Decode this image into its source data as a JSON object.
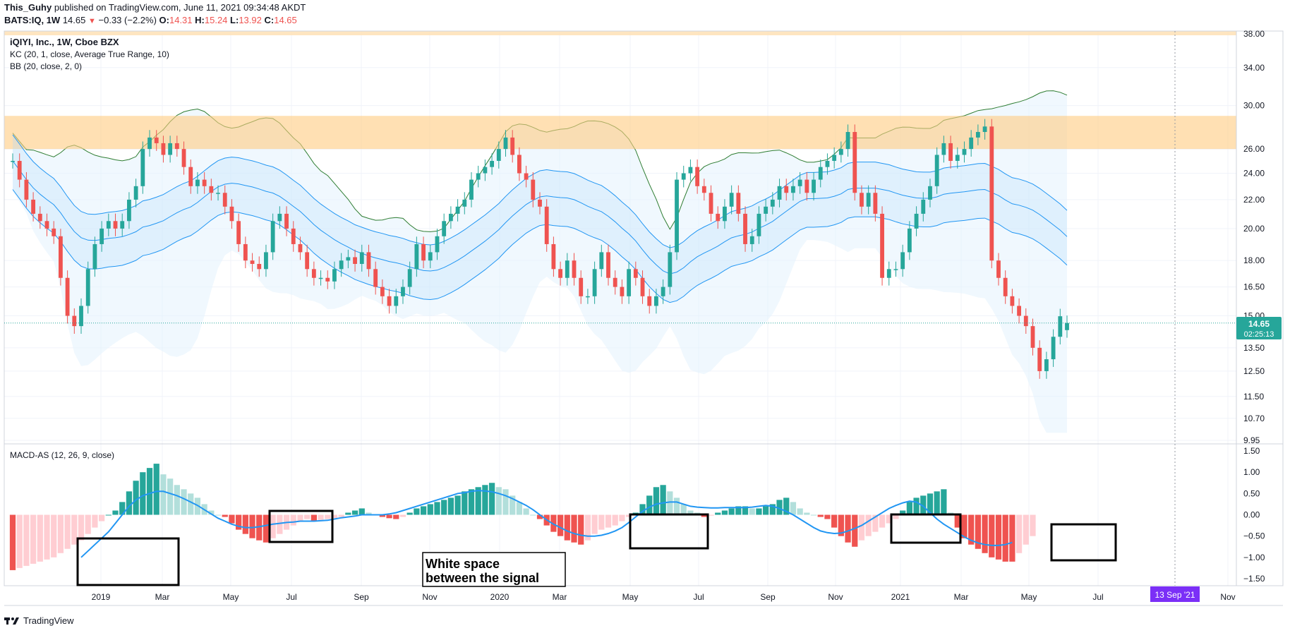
{
  "header": {
    "author": "This_Guhy",
    "published_text": "published on TradingView.com, June 11, 2021 09:34:48 AKDT",
    "symbol": "BATS:IQ, 1W",
    "last": "14.65",
    "change": "−0.33 (−2.2%)",
    "o_label": "O:",
    "o_value": "14.31",
    "h_label": "H:",
    "h_value": "15.24",
    "l_label": "L:",
    "l_value": "13.92",
    "c_label": "C:",
    "c_value": "14.65"
  },
  "legend": {
    "main_title": "iQIYI, Inc., 1W, Cboe BZX",
    "kc": "KC (20, 1, close, Average True Range, 10)",
    "bb": "BB (20, close, 2, 0)",
    "macd": "MACD-AS (12, 26, 9, close)"
  },
  "price_tag": {
    "value": "14.65",
    "countdown": "02:25:13"
  },
  "crosshair_date_tag": "13 Sep '21",
  "annotation_text": "White space between the signal",
  "footer": {
    "brand": "TradingView"
  },
  "colors": {
    "up": "#26a69a",
    "down": "#ef5350",
    "up_light": "#b2dfdb",
    "down_light": "#ffcdd2",
    "kc_line": "#2196f3",
    "bb_line": "#2e7d32",
    "zone": "#ffcc80",
    "macd_line": "#2196f3",
    "tag_bg": "#26a69a",
    "date_tag_bg": "#7b2ff7"
  },
  "chart_data": [
    {
      "type": "candlestick",
      "title": "iQIYI, Inc., 1W, Cboe BZX",
      "x_tick_labels": [
        "2019",
        "Mar",
        "May",
        "Jul",
        "Sep",
        "Nov",
        "2020",
        "Mar",
        "May",
        "Jul",
        "Sep",
        "Nov",
        "2021",
        "Mar",
        "May",
        "Jul",
        "Nov"
      ],
      "y_tick_labels": [
        "38.00",
        "34.00",
        "30.00",
        "26.00",
        "24.00",
        "22.00",
        "20.00",
        "18.00",
        "16.50",
        "15.00",
        "13.50",
        "12.50",
        "11.50",
        "10.70",
        "9.95"
      ],
      "ylim": [
        9.95,
        38.0
      ],
      "y_scale": "log",
      "resistance_zone": [
        26.0,
        29.0
      ],
      "weekly_close": [
        25.0,
        23.5,
        22.0,
        21.0,
        20.5,
        20.0,
        19.5,
        17.0,
        15.0,
        14.5,
        15.5,
        17.5,
        19.0,
        20.0,
        20.5,
        20.0,
        20.5,
        22.0,
        23.0,
        26.0,
        27.0,
        26.5,
        25.5,
        26.5,
        26.0,
        24.5,
        23.0,
        23.5,
        23.0,
        22.5,
        22.5,
        21.5,
        20.5,
        19.0,
        18.0,
        17.8,
        17.5,
        18.5,
        20.5,
        21.0,
        20.0,
        19.0,
        18.5,
        17.5,
        17.0,
        17.0,
        16.8,
        17.5,
        18.0,
        18.2,
        17.8,
        18.5,
        17.5,
        16.5,
        16.0,
        15.5,
        16.0,
        16.5,
        17.5,
        19.0,
        18.0,
        18.5,
        19.5,
        20.5,
        21.0,
        21.5,
        22.0,
        23.5,
        24.0,
        24.5,
        25.0,
        26.0,
        27.0,
        25.5,
        24.0,
        23.5,
        22.0,
        21.5,
        19.0,
        17.5,
        17.0,
        18.0,
        17.0,
        16.0,
        16.0,
        17.5,
        18.5,
        17.0,
        16.5,
        16.0,
        17.5,
        17.0,
        16.0,
        15.5,
        16.0,
        16.5,
        18.5,
        23.5,
        24.0,
        24.5,
        23.0,
        22.5,
        21.0,
        20.5,
        21.5,
        22.5,
        21.0,
        19.0,
        19.5,
        21.0,
        21.5,
        22.0,
        23.0,
        22.5,
        23.0,
        23.5,
        22.5,
        23.5,
        24.5,
        25.0,
        25.5,
        26.0,
        27.5,
        22.5,
        21.5,
        22.5,
        21.0,
        17.0,
        17.5,
        17.5,
        18.5,
        20.0,
        21.0,
        22.0,
        23.0,
        25.5,
        26.5,
        25.0,
        25.5,
        26.0,
        27.0,
        27.5,
        28.0,
        18.0,
        17.0,
        16.0,
        15.5,
        15.0,
        14.5,
        13.5,
        12.5,
        13.0,
        14.0,
        14.98,
        14.65
      ],
      "weekly_open": [
        25.0,
        25.0,
        23.5,
        22.0,
        21.0,
        20.5,
        20.0,
        19.5,
        17.0,
        15.0,
        14.5,
        15.5,
        17.5,
        19.0,
        20.0,
        20.5,
        20.0,
        20.5,
        22.0,
        23.0,
        26.0,
        27.0,
        26.5,
        25.5,
        26.5,
        26.0,
        24.5,
        23.0,
        23.5,
        23.0,
        22.5,
        22.5,
        21.5,
        20.5,
        19.0,
        18.0,
        17.8,
        17.5,
        18.5,
        20.5,
        21.0,
        20.0,
        19.0,
        18.5,
        17.5,
        17.0,
        17.0,
        16.8,
        17.5,
        18.0,
        18.2,
        17.8,
        18.5,
        17.5,
        16.5,
        16.0,
        15.5,
        16.0,
        16.5,
        17.5,
        19.0,
        18.0,
        18.5,
        19.5,
        20.5,
        21.0,
        21.5,
        22.0,
        23.5,
        24.0,
        24.5,
        25.0,
        26.0,
        27.0,
        25.5,
        24.0,
        23.5,
        22.0,
        21.5,
        19.0,
        17.5,
        17.0,
        18.0,
        17.0,
        16.0,
        16.0,
        17.5,
        18.5,
        17.0,
        16.5,
        16.0,
        17.5,
        17.0,
        16.0,
        15.5,
        16.0,
        16.5,
        18.5,
        23.5,
        24.0,
        24.5,
        23.0,
        22.5,
        21.0,
        20.5,
        21.5,
        22.5,
        21.0,
        19.0,
        19.5,
        21.0,
        21.5,
        22.0,
        23.0,
        22.5,
        23.0,
        23.5,
        22.5,
        23.5,
        24.5,
        25.0,
        25.5,
        26.0,
        27.5,
        22.5,
        21.5,
        22.5,
        21.0,
        17.0,
        17.5,
        17.5,
        18.5,
        20.0,
        21.0,
        22.0,
        23.0,
        25.5,
        26.5,
        25.0,
        25.5,
        26.0,
        27.0,
        27.5,
        28.0,
        18.0,
        17.0,
        16.0,
        15.5,
        15.0,
        14.5,
        13.5,
        12.5,
        13.0,
        14.0,
        14.31
      ]
    },
    {
      "type": "bar",
      "title": "MACD-AS (12, 26, 9, close)",
      "y_tick_labels": [
        "1.50",
        "1.00",
        "0.50",
        "0.00",
        "−0.50",
        "−1.00",
        "−1.50"
      ],
      "ylim": [
        -1.5,
        1.5
      ],
      "histogram": [
        -1.3,
        -1.25,
        -1.2,
        -1.15,
        -1.1,
        -1.05,
        -1.0,
        -0.9,
        -0.8,
        -0.7,
        -0.6,
        -0.45,
        -0.3,
        -0.15,
        0.0,
        0.1,
        0.3,
        0.55,
        0.8,
        1.0,
        1.1,
        1.2,
        0.95,
        0.85,
        0.7,
        0.6,
        0.5,
        0.4,
        0.25,
        0.1,
        0.0,
        -0.05,
        -0.2,
        -0.35,
        -0.45,
        -0.55,
        -0.6,
        -0.65,
        -0.55,
        -0.45,
        -0.35,
        -0.25,
        -0.15,
        -0.1,
        -0.15,
        -0.12,
        -0.1,
        -0.08,
        -0.05,
        0.05,
        0.1,
        0.15,
        0.05,
        0.0,
        -0.05,
        -0.08,
        -0.1,
        -0.05,
        0.05,
        0.15,
        0.2,
        0.25,
        0.3,
        0.35,
        0.4,
        0.45,
        0.55,
        0.6,
        0.65,
        0.7,
        0.75,
        0.65,
        0.6,
        0.45,
        0.3,
        0.15,
        0.0,
        -0.1,
        -0.25,
        -0.4,
        -0.5,
        -0.6,
        -0.65,
        -0.7,
        -0.6,
        -0.45,
        -0.35,
        -0.3,
        -0.25,
        -0.15,
        -0.05,
        0.05,
        0.25,
        0.45,
        0.65,
        0.7,
        0.55,
        0.4,
        0.25,
        0.1,
        0.05,
        -0.05,
        -0.02,
        0.05,
        0.1,
        0.15,
        0.2,
        0.2,
        0.15,
        0.15,
        0.2,
        0.25,
        0.35,
        0.4,
        0.3,
        0.15,
        0.05,
        0.0,
        -0.05,
        -0.1,
        -0.3,
        -0.5,
        -0.65,
        -0.75,
        -0.6,
        -0.5,
        -0.4,
        -0.3,
        -0.2,
        -0.1,
        0.1,
        0.3,
        0.4,
        0.45,
        0.5,
        0.55,
        0.6,
        0.05,
        -0.3,
        -0.55,
        -0.7,
        -0.8,
        -0.9,
        -1.0,
        -1.05,
        -1.1,
        -1.1,
        -0.9,
        -0.7,
        -0.5
      ],
      "signal_line": [
        null,
        null,
        null,
        null,
        null,
        null,
        null,
        null,
        null,
        null,
        -1.0,
        -0.85,
        -0.7,
        -0.55,
        -0.4,
        -0.2,
        0.0,
        0.2,
        0.35,
        0.45,
        0.5,
        0.55,
        0.55,
        0.5,
        0.45,
        0.38,
        0.3,
        0.22,
        0.12,
        0.02,
        -0.08,
        -0.15,
        -0.22,
        -0.27,
        -0.3,
        -0.3,
        -0.28,
        -0.25,
        -0.22,
        -0.2,
        -0.18,
        -0.17,
        -0.15,
        -0.15,
        -0.15,
        -0.14,
        -0.13,
        -0.1,
        -0.07,
        -0.05,
        -0.03,
        0.0,
        0.0,
        0.0,
        0.0,
        0.02,
        0.05,
        0.1,
        0.15,
        0.2,
        0.25,
        0.3,
        0.35,
        0.4,
        0.45,
        0.5,
        0.52,
        0.55,
        0.57,
        0.56,
        0.54,
        0.5,
        0.45,
        0.38,
        0.3,
        0.22,
        0.12,
        0.0,
        -0.12,
        -0.22,
        -0.3,
        -0.38,
        -0.44,
        -0.48,
        -0.5,
        -0.5,
        -0.48,
        -0.44,
        -0.38,
        -0.3,
        -0.18,
        -0.05,
        0.08,
        0.18,
        0.25,
        0.28,
        0.3,
        0.3,
        0.25,
        0.2,
        0.18,
        0.17,
        0.16,
        0.16,
        0.17,
        0.17,
        0.17,
        0.17,
        0.18,
        0.2,
        0.22,
        0.2,
        0.15,
        0.08,
        0.0,
        -0.1,
        -0.2,
        -0.3,
        -0.38,
        -0.42,
        -0.44,
        -0.43,
        -0.38,
        -0.32,
        -0.25,
        -0.15,
        -0.05,
        0.05,
        0.15,
        0.22,
        0.28,
        0.32,
        0.3,
        0.2,
        0.05,
        -0.1,
        -0.22,
        -0.32,
        -0.42,
        -0.52,
        -0.6,
        -0.66,
        -0.7,
        -0.72,
        -0.72,
        -0.7,
        -0.65
      ]
    }
  ]
}
